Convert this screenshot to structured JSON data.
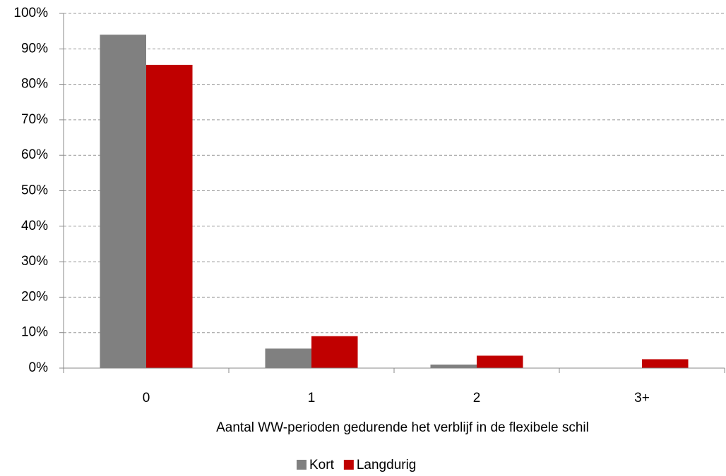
{
  "chart_data": {
    "type": "bar",
    "x_label": "Aantal WW-perioden gedurende het verblijf in de flexibele schil",
    "categories": [
      "0",
      "1",
      "2",
      "3+"
    ],
    "series": [
      {
        "name": "Kort",
        "color": "#808080",
        "values": [
          94,
          5.5,
          1,
          0
        ]
      },
      {
        "name": "Langdurig",
        "color": "#c00000",
        "values": [
          85.5,
          9,
          3.5,
          2.5
        ]
      }
    ],
    "ylim": [
      0,
      100
    ],
    "yticks": [
      {
        "value": 0,
        "label": "0%"
      },
      {
        "value": 10,
        "label": "10%"
      },
      {
        "value": 20,
        "label": "20%"
      },
      {
        "value": 30,
        "label": "30%"
      },
      {
        "value": 40,
        "label": "40%"
      },
      {
        "value": 50,
        "label": "50%"
      },
      {
        "value": 60,
        "label": "60%"
      },
      {
        "value": 70,
        "label": "70%"
      },
      {
        "value": 80,
        "label": "80%"
      },
      {
        "value": 90,
        "label": "90%"
      },
      {
        "value": 100,
        "label": "100%"
      }
    ],
    "grid": true,
    "legend": "bottom"
  }
}
